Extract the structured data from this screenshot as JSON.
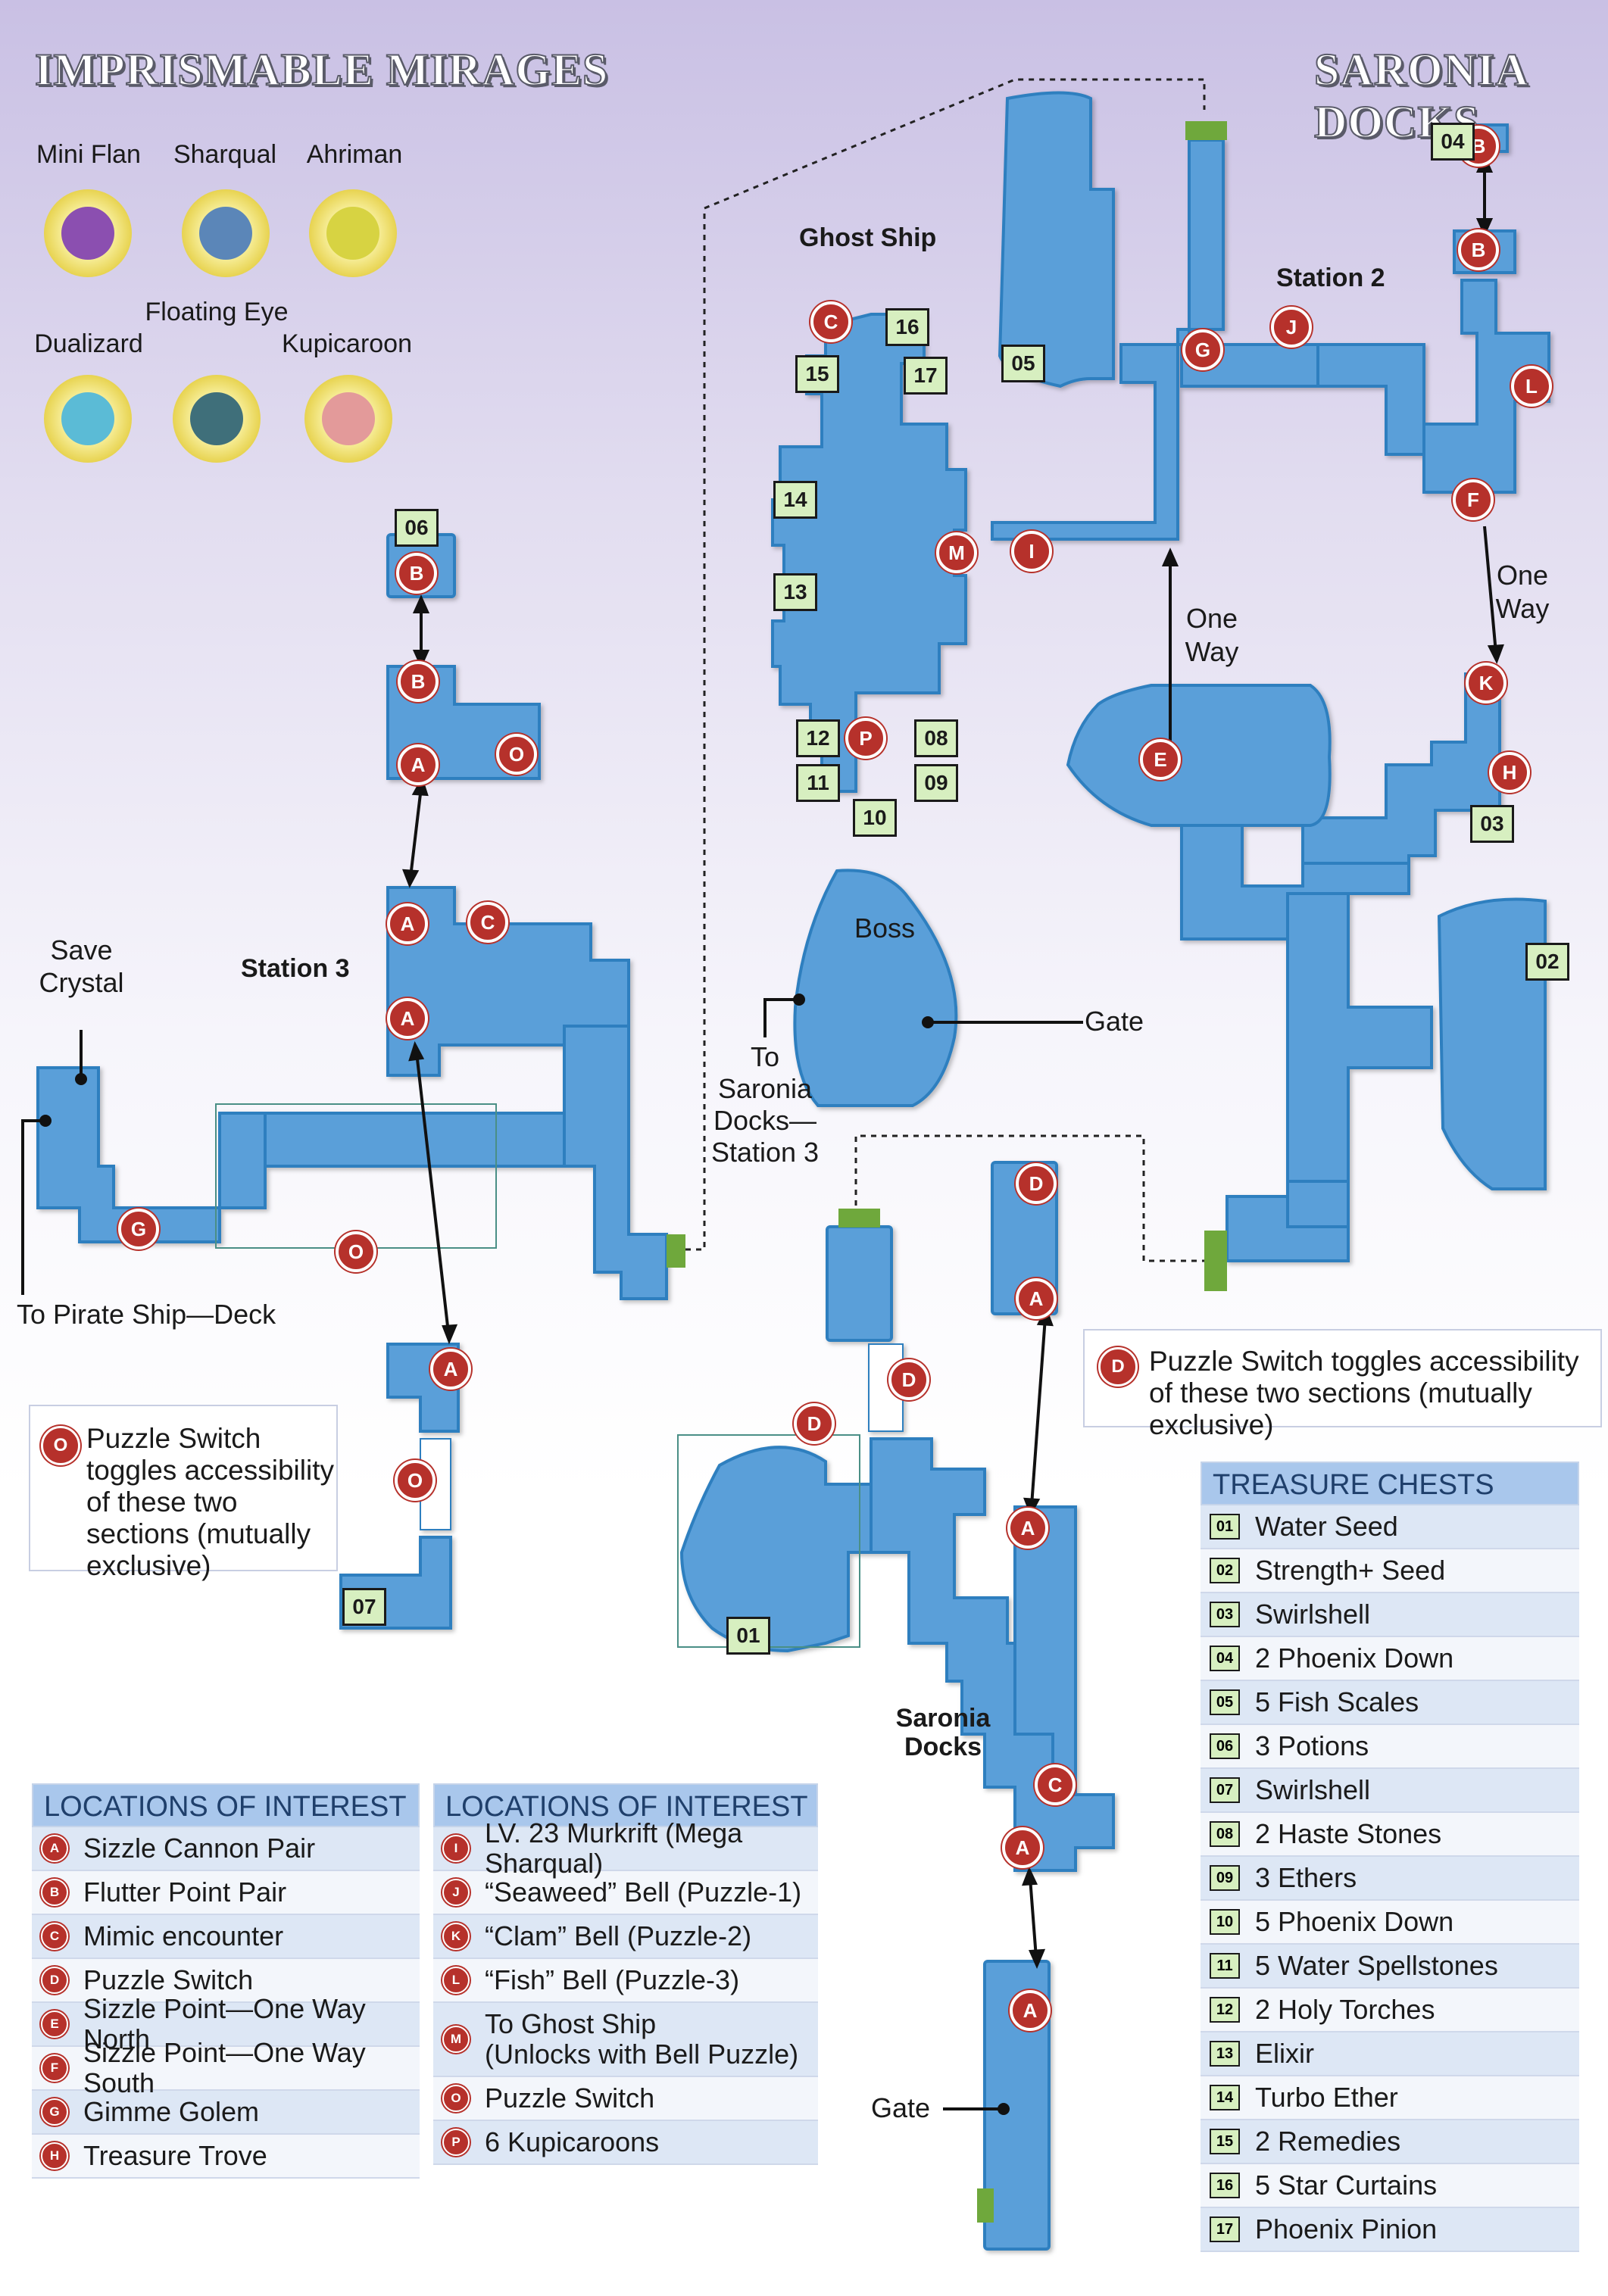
{
  "titles": {
    "left": "IMPRISMABLE MIRAGES",
    "right": "SARONIA DOCKS"
  },
  "mirages": [
    {
      "name": "Mini Flan",
      "color": "#8b4fb0"
    },
    {
      "name": "Sharqual",
      "color": "#5b86b8"
    },
    {
      "name": "Ahriman",
      "color": "#d7d342"
    },
    {
      "name": "Dualizard",
      "color": "#5bbbd6"
    },
    {
      "name": "Floating Eye",
      "color": "#3f6f7a"
    },
    {
      "name": "Kupicaroon",
      "color": "#e39a9a"
    }
  ],
  "area_labels": {
    "ghost_ship": "Ghost Ship",
    "station_2": "Station 2",
    "station_3": "Station 3",
    "saronia_docks": "Saronia Docks",
    "boss": "Boss",
    "gate_upper": "Gate",
    "gate_lower": "Gate",
    "one_way_north": "One Way",
    "one_way_south": "One Way",
    "save_crystal": "Save Crystal",
    "to_pirate_ship": "To Pirate Ship—Deck",
    "to_saronia_station3": "To Saronia Docks— Station 3"
  },
  "notes": {
    "o_switch": {
      "marker": "O",
      "text": "Puzzle Switch toggles accessibility of these two sections (mutually exclusive)"
    },
    "d_switch": {
      "marker": "D",
      "text": "Puzzle Switch toggles accessibility of these two sections (mutually exclusive)"
    }
  },
  "map_markers": [
    "B",
    "B",
    "A",
    "O",
    "A",
    "C",
    "A",
    "G",
    "O",
    "A",
    "O",
    "C",
    "M",
    "I",
    "P",
    "G",
    "J",
    "B",
    "B",
    "L",
    "F",
    "K",
    "H",
    "E",
    "D",
    "A",
    "D",
    "D",
    "A",
    "C",
    "A",
    "A"
  ],
  "map_chests": [
    "06",
    "07",
    "15",
    "16",
    "17",
    "14",
    "13",
    "12",
    "11",
    "08",
    "09",
    "10",
    "05",
    "04",
    "03",
    "02",
    "01"
  ],
  "legend_left": {
    "title": "LOCATIONS OF INTEREST",
    "rows": [
      {
        "key": "A",
        "text": "Sizzle Cannon Pair"
      },
      {
        "key": "B",
        "text": "Flutter Point Pair"
      },
      {
        "key": "C",
        "text": "Mimic encounter"
      },
      {
        "key": "D",
        "text": "Puzzle Switch"
      },
      {
        "key": "E",
        "text": "Sizzle Point—One Way North"
      },
      {
        "key": "F",
        "text": "Sizzle Point—One Way South"
      },
      {
        "key": "G",
        "text": "Gimme Golem"
      },
      {
        "key": "H",
        "text": "Treasure Trove"
      }
    ]
  },
  "legend_mid": {
    "title": "LOCATIONS OF INTEREST",
    "rows": [
      {
        "key": "I",
        "text": "LV. 23 Murkrift (Mega Sharqual)"
      },
      {
        "key": "J",
        "text": "“Seaweed” Bell (Puzzle-1)"
      },
      {
        "key": "K",
        "text": "“Clam” Bell (Puzzle-2)"
      },
      {
        "key": "L",
        "text": "“Fish” Bell (Puzzle-3)"
      },
      {
        "key": "M",
        "text": "To Ghost Ship",
        "text2": "(Unlocks with Bell Puzzle)"
      },
      {
        "key": "O",
        "text": "Puzzle Switch"
      },
      {
        "key": "P",
        "text": "6 Kupicaroons"
      }
    ]
  },
  "legend_chests": {
    "title": "TREASURE CHESTS",
    "rows": [
      {
        "key": "01",
        "text": "Water Seed"
      },
      {
        "key": "02",
        "text": "Strength+ Seed"
      },
      {
        "key": "03",
        "text": "Swirlshell"
      },
      {
        "key": "04",
        "text": "2 Phoenix Down"
      },
      {
        "key": "05",
        "text": "5 Fish Scales"
      },
      {
        "key": "06",
        "text": "3 Potions"
      },
      {
        "key": "07",
        "text": "Swirlshell"
      },
      {
        "key": "08",
        "text": "2 Haste Stones"
      },
      {
        "key": "09",
        "text": "3 Ethers"
      },
      {
        "key": "10",
        "text": "5 Phoenix Down"
      },
      {
        "key": "11",
        "text": "5 Water Spellstones"
      },
      {
        "key": "12",
        "text": "2 Holy Torches"
      },
      {
        "key": "13",
        "text": "Elixir"
      },
      {
        "key": "14",
        "text": "Turbo Ether"
      },
      {
        "key": "15",
        "text": "2 Remedies"
      },
      {
        "key": "16",
        "text": "5 Star Curtains"
      },
      {
        "key": "17",
        "text": "Phoenix Pinion"
      }
    ]
  },
  "colors": {
    "room_fill": "#5a9fd9",
    "room_stroke": "#2e7fbf",
    "marker": "#b6312b",
    "chest_fill": "#d7efc0",
    "connector": "#6fa83c",
    "legend_header": "#a9c7ec"
  }
}
